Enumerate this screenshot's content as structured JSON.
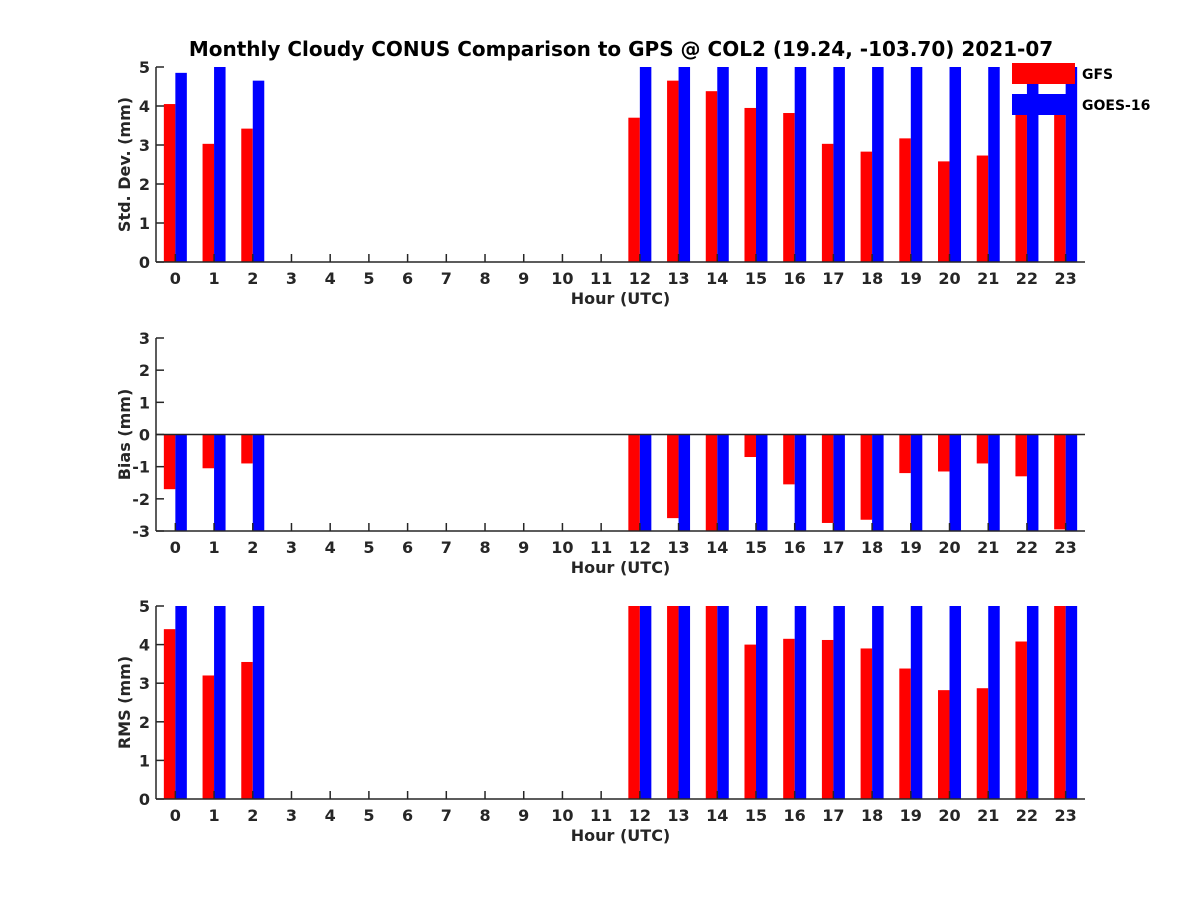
{
  "chart_data": {
    "title": "Monthly Cloudy CONUS Comparison to GPS @ COL2 (19.24, -103.70) 2021-07",
    "type": "bar",
    "categories": [
      "0",
      "1",
      "2",
      "3",
      "4",
      "5",
      "6",
      "7",
      "8",
      "9",
      "10",
      "11",
      "12",
      "13",
      "14",
      "15",
      "16",
      "17",
      "18",
      "19",
      "20",
      "21",
      "22",
      "23"
    ],
    "legend": {
      "placement": "top-right",
      "entries": [
        {
          "name": "GFS",
          "color": "#ff0000"
        },
        {
          "name": "GOES-16",
          "color": "#0000ff"
        }
      ]
    },
    "panels": [
      {
        "ylabel": "Std. Dev. (mm)",
        "xlabel": "Hour (UTC)",
        "ylim": [
          0,
          5
        ],
        "yticks": [
          "0",
          "1",
          "2",
          "3",
          "4",
          "5"
        ],
        "series": [
          {
            "name": "GFS",
            "color": "#ff0000",
            "values": [
              4.05,
              3.03,
              3.42,
              null,
              null,
              null,
              null,
              null,
              null,
              null,
              null,
              null,
              3.7,
              4.65,
              4.38,
              3.95,
              3.82,
              3.03,
              2.83,
              3.17,
              2.58,
              2.73,
              3.88,
              4.1
            ]
          },
          {
            "name": "GOES-16",
            "color": "#0000ff",
            "values": [
              4.85,
              5,
              4.65,
              null,
              null,
              null,
              null,
              null,
              null,
              null,
              null,
              null,
              5,
              5,
              5,
              5,
              5,
              5,
              5,
              5,
              5,
              5,
              5,
              5
            ]
          }
        ]
      },
      {
        "ylabel": "Bias (mm)",
        "xlabel": "Hour (UTC)",
        "ylim": [
          -3,
          3
        ],
        "yticks": [
          "-3",
          "-2",
          "-1",
          "0",
          "1",
          "2",
          "3"
        ],
        "series": [
          {
            "name": "GFS",
            "color": "#ff0000",
            "values": [
              -1.7,
              -1.05,
              -0.9,
              null,
              null,
              null,
              null,
              null,
              null,
              null,
              null,
              null,
              -3,
              -2.6,
              -3,
              -0.7,
              -1.55,
              -2.75,
              -2.65,
              -1.2,
              -1.15,
              -0.9,
              -1.3,
              -2.95
            ]
          },
          {
            "name": "GOES-16",
            "color": "#0000ff",
            "values": [
              -3,
              -3,
              -3,
              null,
              null,
              null,
              null,
              null,
              null,
              null,
              null,
              null,
              -3,
              -3,
              -3,
              -3,
              -3,
              -3,
              -3,
              -3,
              -3,
              -3,
              -3,
              -3
            ]
          }
        ]
      },
      {
        "ylabel": "RMS (mm)",
        "xlabel": "Hour (UTC)",
        "ylim": [
          0,
          5
        ],
        "yticks": [
          "0",
          "1",
          "2",
          "3",
          "4",
          "5"
        ],
        "series": [
          {
            "name": "GFS",
            "color": "#ff0000",
            "values": [
              4.4,
              3.2,
              3.55,
              null,
              null,
              null,
              null,
              null,
              null,
              null,
              null,
              null,
              5,
              5,
              5,
              4.0,
              4.15,
              4.12,
              3.9,
              3.38,
              2.82,
              2.87,
              4.08,
              5
            ]
          },
          {
            "name": "GOES-16",
            "color": "#0000ff",
            "values": [
              5,
              5,
              5,
              null,
              null,
              null,
              null,
              null,
              null,
              null,
              null,
              null,
              5,
              5,
              5,
              5,
              5,
              5,
              5,
              5,
              5,
              5,
              5,
              5
            ]
          }
        ]
      }
    ]
  }
}
